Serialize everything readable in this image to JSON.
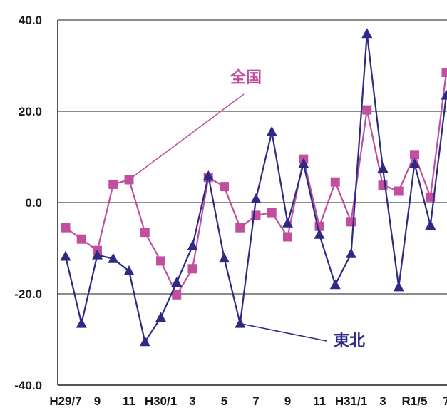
{
  "chart_data": {
    "type": "line",
    "y_ticks": [
      "40.0",
      "20.0",
      "0.0",
      "-20.0",
      "-40.0"
    ],
    "ylim": [
      -40,
      40
    ],
    "grid": true,
    "x_labels": [
      {
        "index": 0,
        "text": "H29/7"
      },
      {
        "index": 2,
        "text": "9"
      },
      {
        "index": 4,
        "text": "11"
      },
      {
        "index": 6,
        "text": "H30/1"
      },
      {
        "index": 8,
        "text": "3"
      },
      {
        "index": 10,
        "text": "5"
      },
      {
        "index": 12,
        "text": "7"
      },
      {
        "index": 14,
        "text": "9"
      },
      {
        "index": 16,
        "text": "11"
      },
      {
        "index": 18,
        "text": "H31/1"
      },
      {
        "index": 20,
        "text": "3"
      },
      {
        "index": 22,
        "text": "R1/5"
      },
      {
        "index": 24,
        "text": "7"
      }
    ],
    "series": [
      {
        "name": "全国",
        "color": "#c0509e",
        "marker": "square",
        "values": [
          -5.5,
          -8.0,
          -10.5,
          4.0,
          5.0,
          -6.5,
          -12.8,
          -20.2,
          -14.5,
          5.5,
          3.5,
          -5.5,
          -2.8,
          -2.2,
          -7.5,
          9.5,
          -5.2,
          4.5,
          -4.2,
          20.3,
          3.8,
          2.5,
          10.5,
          1.2,
          28.5
        ]
      },
      {
        "name": "東北",
        "color": "#2c2a86",
        "marker": "triangle",
        "values": [
          -11.8,
          -26.5,
          -11.5,
          -12.3,
          -15.0,
          -30.5,
          -25.2,
          -17.5,
          -9.5,
          5.8,
          -12.2,
          -26.5,
          0.8,
          15.5,
          -4.5,
          8.5,
          -7.0,
          -18.0,
          -11.2,
          37.0,
          7.5,
          -18.5,
          8.5,
          -5.0,
          23.5
        ]
      }
    ],
    "annotations": [
      {
        "text": "全国",
        "series": 0,
        "point": 4
      },
      {
        "text": "東北",
        "series": 1,
        "point": 11
      }
    ]
  }
}
